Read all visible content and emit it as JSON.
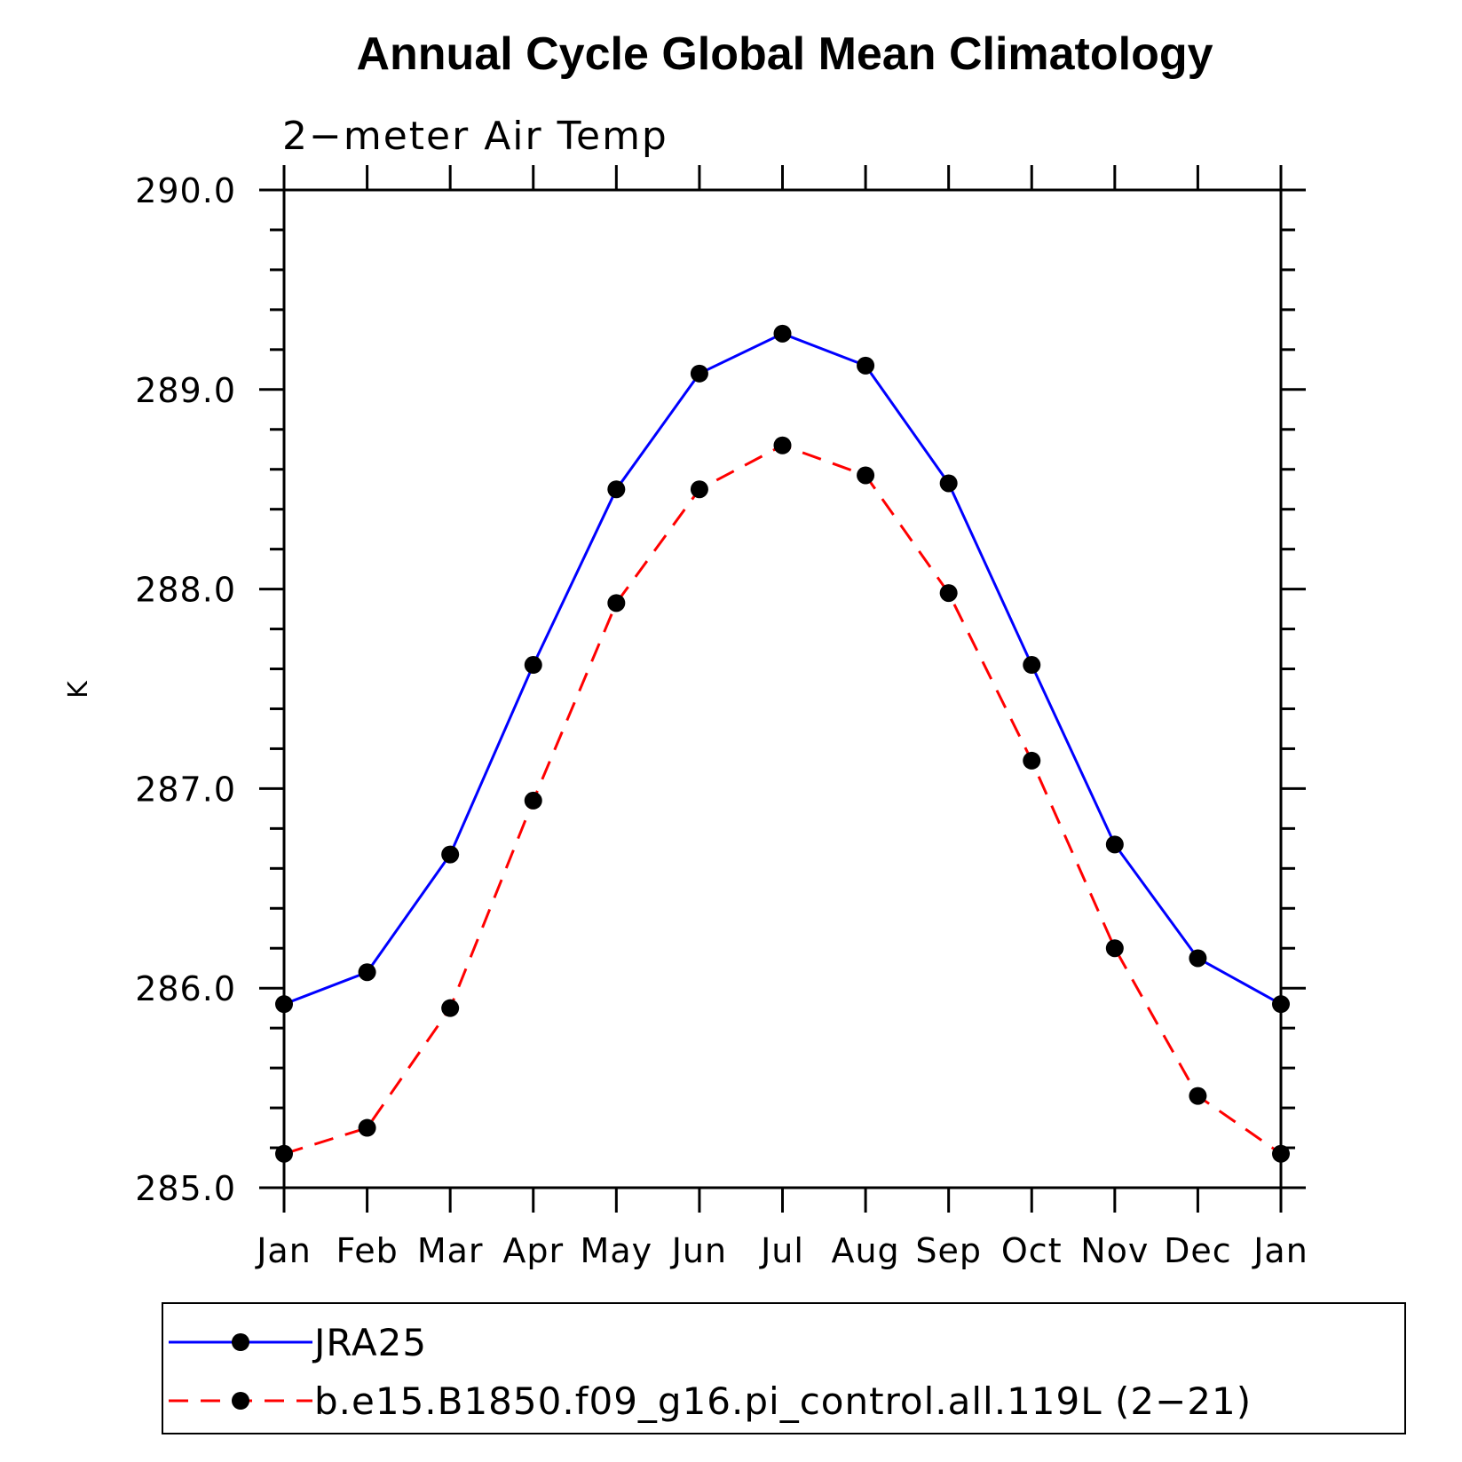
{
  "chart_data": {
    "type": "line",
    "title": "Annual Cycle Global Mean Climatology",
    "subtitle": "2−meter Air Temp",
    "ylabel": "K",
    "xlabel": "",
    "ylim": [
      285.0,
      290.0
    ],
    "yticks": [
      "285.0",
      "286.0",
      "287.0",
      "288.0",
      "289.0",
      "290.0"
    ],
    "ytick_values": [
      285.0,
      286.0,
      287.0,
      288.0,
      289.0,
      290.0
    ],
    "categories": [
      "Jan",
      "Feb",
      "Mar",
      "Apr",
      "May",
      "Jun",
      "Jul",
      "Aug",
      "Sep",
      "Oct",
      "Nov",
      "Dec",
      "Jan"
    ],
    "grid": false,
    "legend_position": "bottom",
    "series": [
      {
        "name": "JRA25",
        "color": "#0000ff",
        "line_style": "solid",
        "values": [
          285.92,
          286.08,
          286.67,
          287.62,
          288.5,
          289.08,
          289.28,
          289.12,
          288.53,
          287.62,
          286.72,
          286.15,
          285.92
        ]
      },
      {
        "name": "b.e15.B1850.f09_g16.pi_control.all.119L (2−21)",
        "color": "#ff0000",
        "line_style": "dashed",
        "values": [
          285.17,
          285.3,
          285.9,
          286.94,
          287.93,
          288.5,
          288.72,
          288.57,
          287.98,
          287.14,
          286.2,
          285.46,
          285.17
        ]
      }
    ]
  }
}
